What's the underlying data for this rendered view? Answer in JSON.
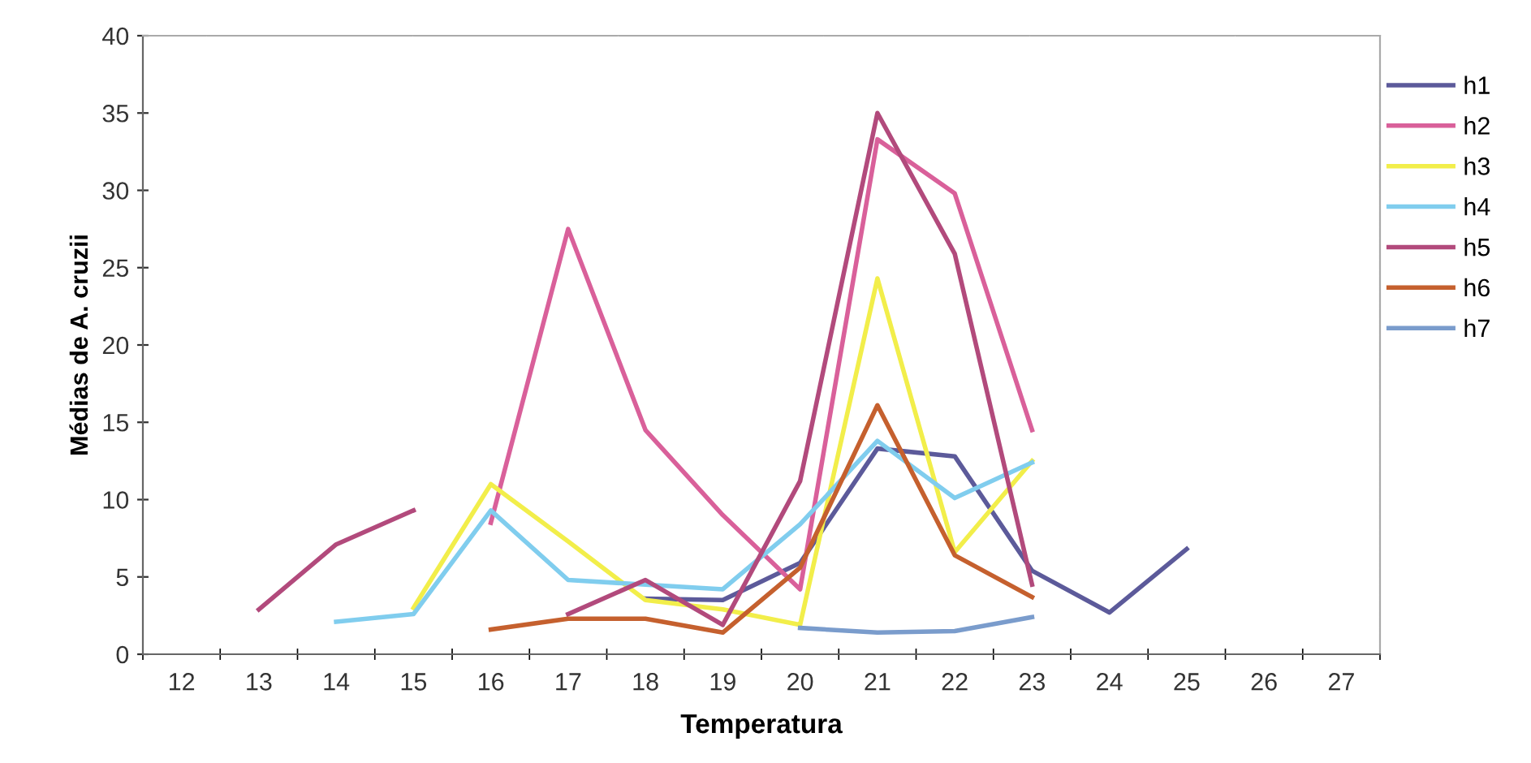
{
  "chart_data": {
    "type": "line",
    "xlabel": "Temperatura",
    "ylabel": "Médias de A. cruzii",
    "categories": [
      "12",
      "13",
      "14",
      "15",
      "16",
      "17",
      "18",
      "19",
      "20",
      "21",
      "22",
      "23",
      "24",
      "25",
      "26",
      "27"
    ],
    "ylim": [
      0,
      40
    ],
    "yticks": [
      0,
      5,
      10,
      15,
      20,
      25,
      30,
      35,
      40
    ],
    "grid": false,
    "legend": "right",
    "marker": "none",
    "series": [
      {
        "name": "h1",
        "color": "#5c5a9a",
        "values": [
          null,
          null,
          null,
          null,
          null,
          null,
          3.6,
          3.5,
          5.9,
          13.3,
          12.8,
          5.4,
          2.7,
          6.8,
          null,
          null
        ]
      },
      {
        "name": "h2",
        "color": "#d9609a",
        "values": [
          null,
          null,
          null,
          null,
          8.5,
          27.5,
          14.5,
          9,
          4.2,
          33.3,
          29.8,
          14.5,
          null,
          null,
          null,
          null
        ]
      },
      {
        "name": "h3",
        "color": "#f2ee4a",
        "values": [
          null,
          null,
          null,
          3,
          11,
          7.3,
          3.5,
          2.9,
          1.9,
          24.3,
          6.6,
          12.5,
          null,
          null,
          null,
          null
        ]
      },
      {
        "name": "h4",
        "color": "#80cdee",
        "values": [
          null,
          null,
          2.1,
          2.6,
          9.3,
          4.8,
          4.5,
          4.2,
          8.4,
          13.8,
          10.1,
          12.4,
          null,
          null,
          null,
          null
        ]
      },
      {
        "name": "h5",
        "color": "#b24a7c",
        "values": [
          null,
          2.9,
          7.1,
          9.3,
          null,
          2.6,
          4.8,
          1.9,
          11.2,
          35,
          25.9,
          4.5,
          null,
          null,
          null,
          null
        ]
      },
      {
        "name": "h6",
        "color": "#c5602e",
        "values": [
          null,
          null,
          null,
          null,
          1.6,
          2.3,
          2.3,
          1.4,
          5.6,
          16.1,
          6.4,
          3.7,
          null,
          null,
          null,
          null
        ]
      },
      {
        "name": "h7",
        "color": "#7a9ccc",
        "values": [
          null,
          null,
          null,
          null,
          null,
          null,
          null,
          null,
          1.7,
          1.4,
          1.5,
          2.4,
          null,
          null,
          null,
          null
        ]
      }
    ]
  }
}
